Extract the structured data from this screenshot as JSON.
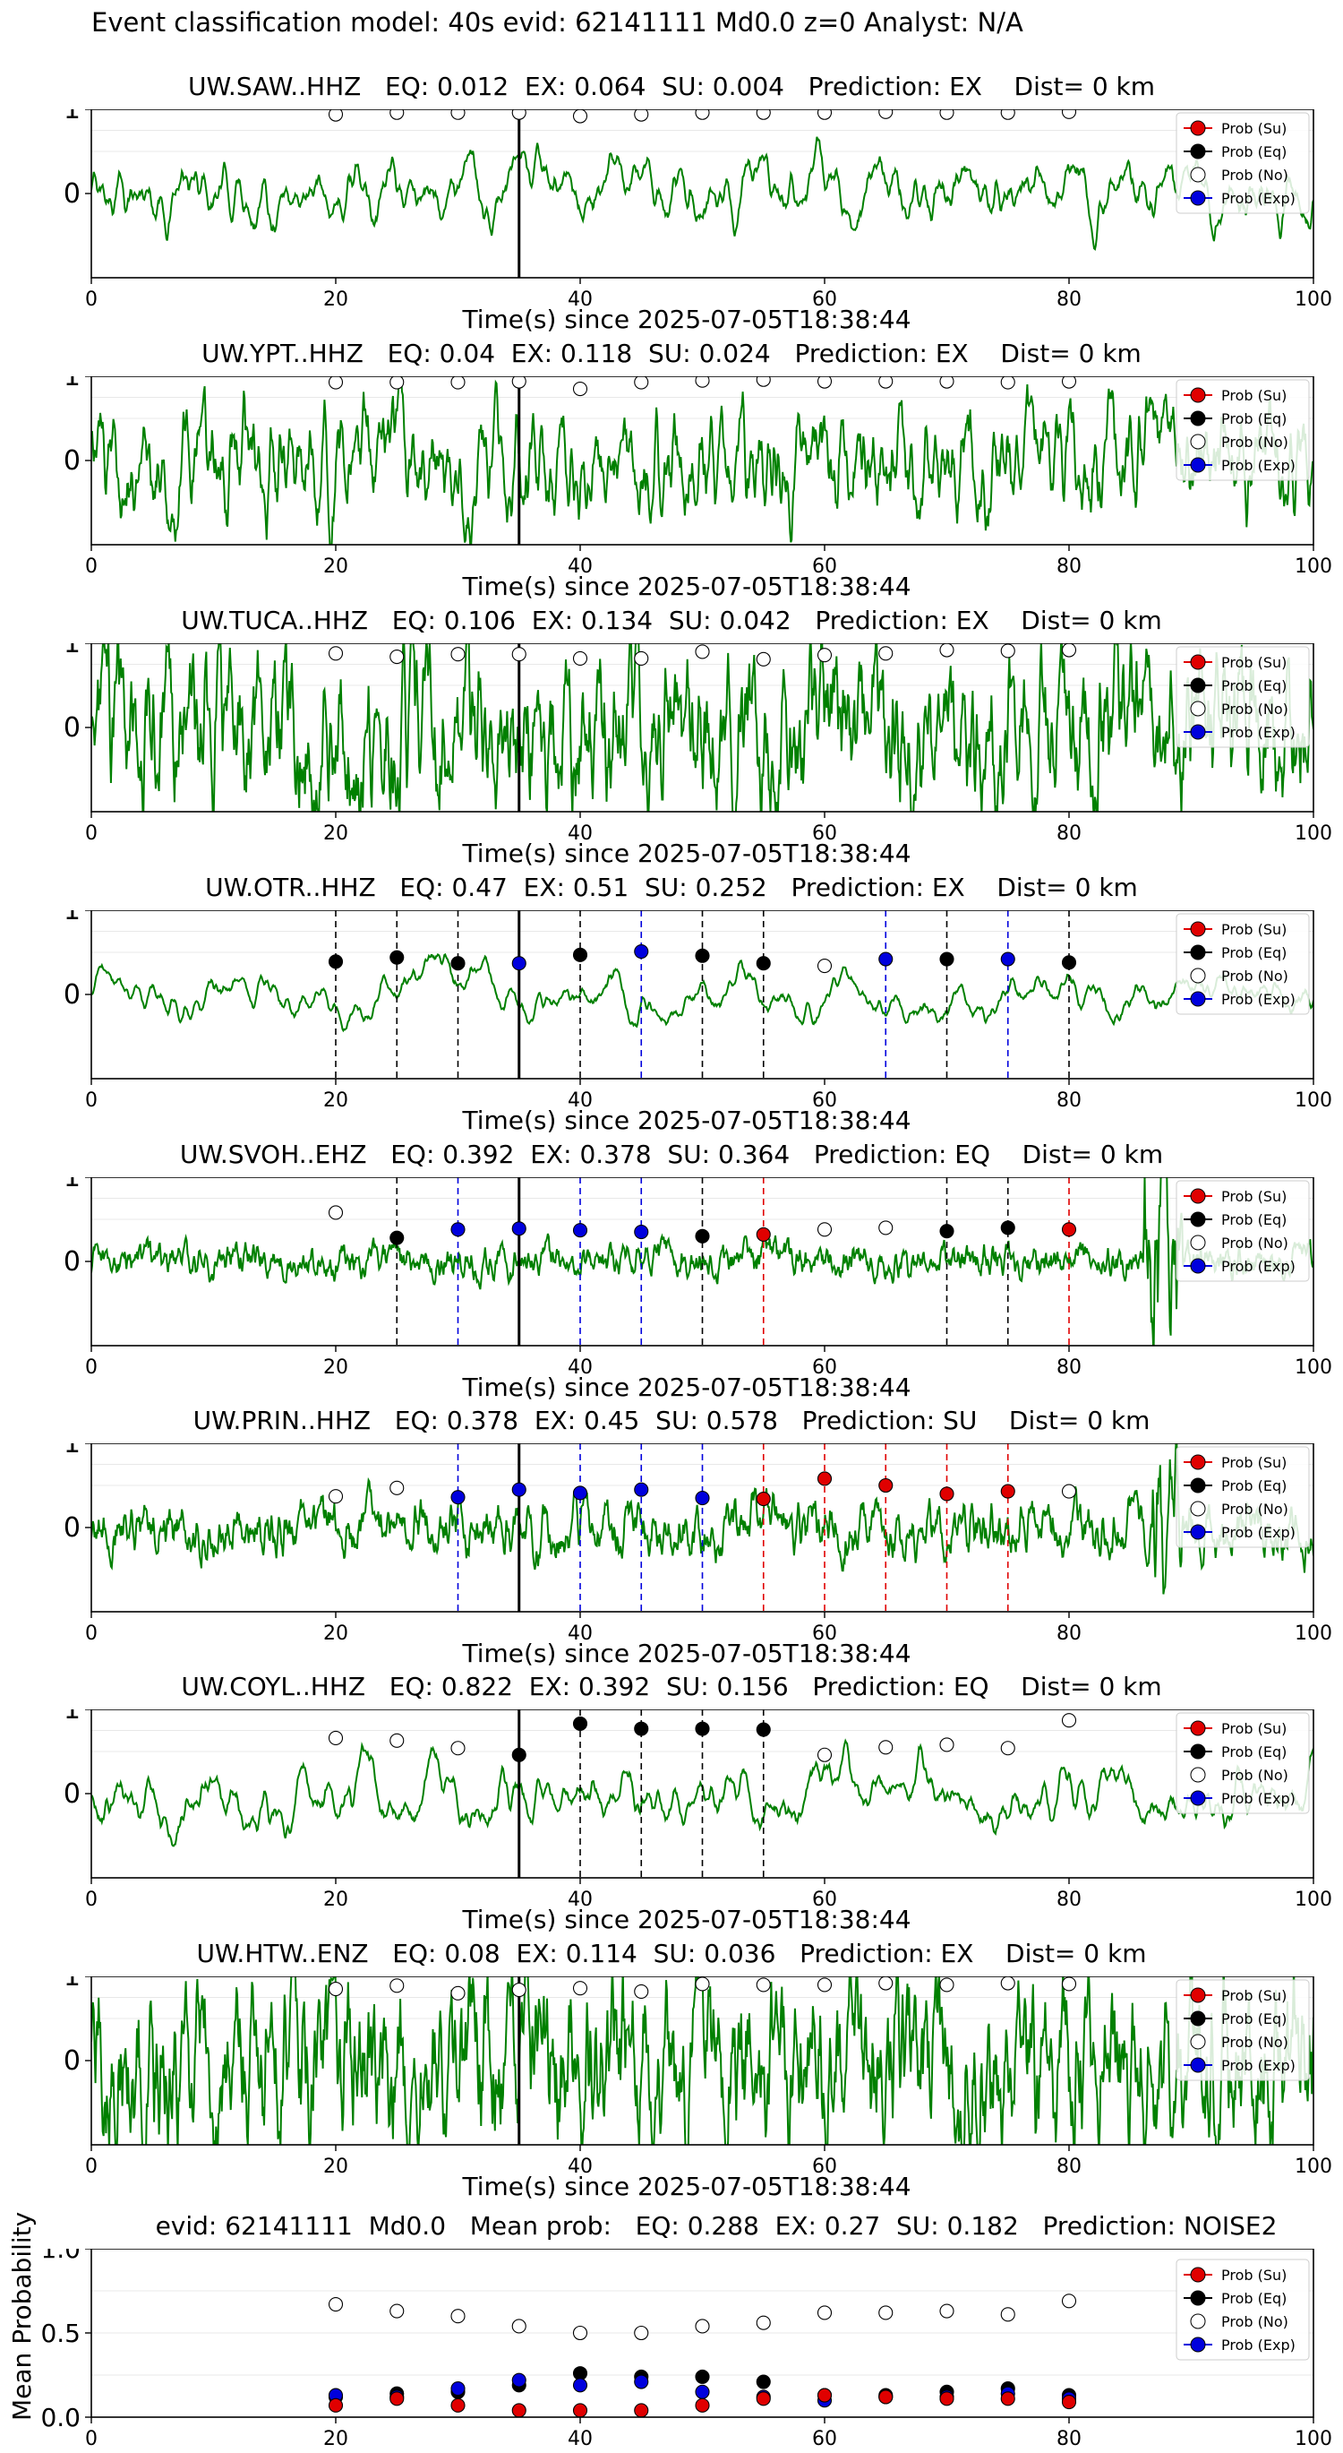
{
  "figure_title": "Event classification model: 40s evid: 62141111 Md0.0 z=0 Analyst: N/A",
  "colors": {
    "trace": "#008000",
    "su": "#e00000",
    "eq": "#000000",
    "no": "#ffffff",
    "exp": "#0000dd",
    "pick": "#000000"
  },
  "legend_labels": [
    "Prob (Su)",
    "Prob (Eq)",
    "Prob (No)",
    "Prob (Exp)"
  ],
  "chart_data": [
    {
      "type": "line",
      "title": "UW.SAW..HHZ   EQ: 0.012  EX: 0.064  SU: 0.004   Prediction: EX    Dist= 0 km",
      "xlabel": "Time(s) since 2025-07-05T18:38:44",
      "xlim": [
        0,
        100
      ],
      "ylim": [
        -1,
        1
      ],
      "xticks": [
        "0",
        "20",
        "40",
        "60",
        "80",
        "100"
      ],
      "yticks": [
        "0",
        "1"
      ],
      "pick_time": 35,
      "series": [
        {
          "name": "Prob (No)",
          "x": [
            20,
            25,
            30,
            35,
            40,
            45,
            50,
            55,
            60,
            65,
            70,
            75,
            80
          ],
          "y": [
            0.94,
            0.96,
            0.96,
            0.96,
            0.92,
            0.94,
            0.96,
            0.96,
            0.96,
            0.97,
            0.96,
            0.96,
            0.97
          ]
        }
      ],
      "markers": []
    },
    {
      "type": "line",
      "title": "UW.YPT..HHZ   EQ: 0.04  EX: 0.118  SU: 0.024   Prediction: EX    Dist= 0 km",
      "xlabel": "Time(s) since 2025-07-05T18:38:44",
      "xlim": [
        0,
        100
      ],
      "ylim": [
        -1,
        1
      ],
      "xticks": [
        "0",
        "20",
        "40",
        "60",
        "80",
        "100"
      ],
      "yticks": [
        "0",
        "1"
      ],
      "pick_time": 35,
      "series": [
        {
          "name": "Prob (No)",
          "x": [
            20,
            25,
            30,
            35,
            40,
            45,
            50,
            55,
            60,
            65,
            70,
            75,
            80
          ],
          "y": [
            0.93,
            0.93,
            0.93,
            0.94,
            0.85,
            0.93,
            0.95,
            0.96,
            0.94,
            0.94,
            0.94,
            0.93,
            0.94
          ]
        }
      ],
      "markers": []
    },
    {
      "type": "line",
      "title": "UW.TUCA..HHZ   EQ: 0.106  EX: 0.134  SU: 0.042   Prediction: EX    Dist= 0 km",
      "xlabel": "Time(s) since 2025-07-05T18:38:44",
      "xlim": [
        0,
        100
      ],
      "ylim": [
        -1,
        1
      ],
      "xticks": [
        "0",
        "20",
        "40",
        "60",
        "80",
        "100"
      ],
      "yticks": [
        "0",
        "1"
      ],
      "pick_time": 35,
      "series": [
        {
          "name": "Prob (No)",
          "x": [
            20,
            25,
            30,
            35,
            40,
            45,
            50,
            55,
            60,
            65,
            70,
            75,
            80
          ],
          "y": [
            0.88,
            0.84,
            0.87,
            0.87,
            0.82,
            0.82,
            0.9,
            0.81,
            0.86,
            0.88,
            0.92,
            0.91,
            0.92
          ]
        }
      ],
      "markers": []
    },
    {
      "type": "line",
      "title": "UW.OTR..HHZ   EQ: 0.47  EX: 0.51  SU: 0.252   Prediction: EX    Dist= 0 km",
      "xlabel": "Time(s) since 2025-07-05T18:38:44",
      "xlim": [
        0,
        100
      ],
      "ylim": [
        -1,
        1
      ],
      "xticks": [
        "0",
        "20",
        "40",
        "60",
        "80",
        "100"
      ],
      "yticks": [
        "0",
        "1"
      ],
      "pick_time": 35,
      "series": [
        {
          "name": "Prob (Eq)",
          "x": [
            20,
            25,
            30,
            40,
            50,
            55,
            70,
            80
          ],
          "y": [
            0.39,
            0.44,
            0.37,
            0.47,
            0.46,
            0.37,
            0.42,
            0.38
          ]
        },
        {
          "name": "Prob (Exp)",
          "x": [
            35,
            45,
            65,
            75
          ],
          "y": [
            0.37,
            0.51,
            0.42,
            0.42
          ]
        },
        {
          "name": "Prob (No)",
          "x": [
            60
          ],
          "y": [
            0.34
          ]
        }
      ],
      "markers": [
        {
          "x": 20,
          "c": "eq"
        },
        {
          "x": 25,
          "c": "eq"
        },
        {
          "x": 30,
          "c": "eq"
        },
        {
          "x": 40,
          "c": "eq"
        },
        {
          "x": 45,
          "c": "exp"
        },
        {
          "x": 50,
          "c": "eq"
        },
        {
          "x": 55,
          "c": "eq"
        },
        {
          "x": 65,
          "c": "exp"
        },
        {
          "x": 70,
          "c": "eq"
        },
        {
          "x": 75,
          "c": "exp"
        },
        {
          "x": 80,
          "c": "eq"
        }
      ]
    },
    {
      "type": "line",
      "title": "UW.SVOH..EHZ   EQ: 0.392  EX: 0.378  SU: 0.364   Prediction: EQ    Dist= 0 km",
      "xlabel": "Time(s) since 2025-07-05T18:38:44",
      "xlim": [
        0,
        100
      ],
      "ylim": [
        -1,
        1
      ],
      "xticks": [
        "0",
        "20",
        "40",
        "60",
        "80",
        "100"
      ],
      "yticks": [
        "0",
        "1"
      ],
      "pick_time": 35,
      "series": [
        {
          "name": "Prob (No)",
          "x": [
            20,
            60,
            65
          ],
          "y": [
            0.58,
            0.38,
            0.4
          ]
        },
        {
          "name": "Prob (Eq)",
          "x": [
            25,
            50,
            70,
            75
          ],
          "y": [
            0.28,
            0.3,
            0.36,
            0.4
          ]
        },
        {
          "name": "Prob (Exp)",
          "x": [
            30,
            35,
            40,
            45
          ],
          "y": [
            0.38,
            0.39,
            0.37,
            0.35
          ]
        },
        {
          "name": "Prob (Su)",
          "x": [
            55,
            80
          ],
          "y": [
            0.32,
            0.38
          ]
        }
      ],
      "markers": [
        {
          "x": 25,
          "c": "eq"
        },
        {
          "x": 30,
          "c": "exp"
        },
        {
          "x": 40,
          "c": "exp"
        },
        {
          "x": 45,
          "c": "exp"
        },
        {
          "x": 50,
          "c": "eq"
        },
        {
          "x": 55,
          "c": "su"
        },
        {
          "x": 70,
          "c": "eq"
        },
        {
          "x": 75,
          "c": "eq"
        },
        {
          "x": 80,
          "c": "su"
        }
      ]
    },
    {
      "type": "line",
      "title": "UW.PRIN..HHZ   EQ: 0.378  EX: 0.45  SU: 0.578   Prediction: SU    Dist= 0 km",
      "xlabel": "Time(s) since 2025-07-05T18:38:44",
      "xlim": [
        0,
        100
      ],
      "ylim": [
        -1,
        1
      ],
      "xticks": [
        "0",
        "20",
        "40",
        "60",
        "80",
        "100"
      ],
      "yticks": [
        "0",
        "1"
      ],
      "pick_time": 35,
      "series": [
        {
          "name": "Prob (No)",
          "x": [
            20,
            25,
            80
          ],
          "y": [
            0.37,
            0.47,
            0.43
          ]
        },
        {
          "name": "Prob (Exp)",
          "x": [
            30,
            35,
            40,
            45,
            50
          ],
          "y": [
            0.36,
            0.45,
            0.41,
            0.45,
            0.35
          ]
        },
        {
          "name": "Prob (Su)",
          "x": [
            55,
            60,
            65,
            70,
            75
          ],
          "y": [
            0.34,
            0.58,
            0.5,
            0.4,
            0.43
          ]
        }
      ],
      "markers": [
        {
          "x": 30,
          "c": "exp"
        },
        {
          "x": 40,
          "c": "exp"
        },
        {
          "x": 45,
          "c": "exp"
        },
        {
          "x": 50,
          "c": "exp"
        },
        {
          "x": 55,
          "c": "su"
        },
        {
          "x": 60,
          "c": "su"
        },
        {
          "x": 65,
          "c": "su"
        },
        {
          "x": 70,
          "c": "su"
        },
        {
          "x": 75,
          "c": "su"
        }
      ]
    },
    {
      "type": "line",
      "title": "UW.COYL..HHZ   EQ: 0.822  EX: 0.392  SU: 0.156   Prediction: EQ    Dist= 0 km",
      "xlabel": "Time(s) since 2025-07-05T18:38:44",
      "xlim": [
        0,
        100
      ],
      "ylim": [
        -1,
        1
      ],
      "xticks": [
        "0",
        "20",
        "40",
        "60",
        "80",
        "100"
      ],
      "yticks": [
        "0",
        "1"
      ],
      "pick_time": 35,
      "series": [
        {
          "name": "Prob (No)",
          "x": [
            20,
            25,
            30,
            60,
            65,
            70,
            75,
            80
          ],
          "y": [
            0.66,
            0.63,
            0.54,
            0.46,
            0.55,
            0.58,
            0.54,
            0.87
          ]
        },
        {
          "name": "Prob (Eq)",
          "x": [
            35,
            40,
            45,
            50,
            55
          ],
          "y": [
            0.46,
            0.83,
            0.77,
            0.77,
            0.76
          ]
        }
      ],
      "markers": [
        {
          "x": 40,
          "c": "eq"
        },
        {
          "x": 45,
          "c": "eq"
        },
        {
          "x": 50,
          "c": "eq"
        },
        {
          "x": 55,
          "c": "eq"
        }
      ]
    },
    {
      "type": "line",
      "title": "UW.HTW..ENZ   EQ: 0.08  EX: 0.114  SU: 0.036   Prediction: EX    Dist= 0 km",
      "xlabel": "Time(s) since 2025-07-05T18:38:44",
      "xlim": [
        0,
        100
      ],
      "ylim": [
        -1,
        1
      ],
      "xticks": [
        "0",
        "20",
        "40",
        "60",
        "80",
        "100"
      ],
      "yticks": [
        "0",
        "1"
      ],
      "pick_time": 35,
      "series": [
        {
          "name": "Prob (No)",
          "x": [
            20,
            25,
            30,
            35,
            40,
            45,
            50,
            55,
            60,
            65,
            70,
            75,
            80
          ],
          "y": [
            0.85,
            0.89,
            0.8,
            0.84,
            0.86,
            0.82,
            0.91,
            0.9,
            0.9,
            0.92,
            0.9,
            0.92,
            0.91
          ]
        }
      ],
      "markers": []
    },
    {
      "type": "scatter",
      "title": "evid: 62141111  Md0.0   Mean prob:   EQ: 0.288  EX: 0.27  SU: 0.182   Prediction: NOISE2",
      "ylabel": "Mean Probability",
      "xlim": [
        0,
        100
      ],
      "ylim": [
        0,
        1
      ],
      "xticks": [
        "0",
        "20",
        "40",
        "60",
        "80",
        "100"
      ],
      "yticks": [
        "0.0",
        "0.5",
        "1.0"
      ],
      "series": [
        {
          "name": "Prob (No)",
          "x": [
            20,
            25,
            30,
            35,
            40,
            45,
            50,
            55,
            60,
            65,
            70,
            75,
            80
          ],
          "y": [
            0.67,
            0.63,
            0.6,
            0.54,
            0.5,
            0.5,
            0.54,
            0.56,
            0.62,
            0.62,
            0.63,
            0.61,
            0.69
          ]
        },
        {
          "name": "Prob (Eq)",
          "x": [
            20,
            25,
            30,
            35,
            40,
            45,
            50,
            55,
            60,
            65,
            70,
            75,
            80
          ],
          "y": [
            0.12,
            0.14,
            0.15,
            0.19,
            0.26,
            0.24,
            0.24,
            0.21,
            0.13,
            0.13,
            0.15,
            0.17,
            0.13
          ]
        },
        {
          "name": "Prob (Exp)",
          "x": [
            20,
            25,
            30,
            35,
            40,
            45,
            50,
            55,
            60,
            65,
            70,
            75,
            80
          ],
          "y": [
            0.13,
            0.12,
            0.17,
            0.22,
            0.19,
            0.21,
            0.15,
            0.12,
            0.1,
            0.12,
            0.12,
            0.14,
            0.11
          ]
        },
        {
          "name": "Prob (Su)",
          "x": [
            20,
            25,
            30,
            35,
            40,
            45,
            50,
            55,
            60,
            65,
            70,
            75,
            80
          ],
          "y": [
            0.07,
            0.11,
            0.07,
            0.04,
            0.04,
            0.04,
            0.07,
            0.11,
            0.13,
            0.12,
            0.11,
            0.11,
            0.09
          ]
        }
      ]
    }
  ]
}
